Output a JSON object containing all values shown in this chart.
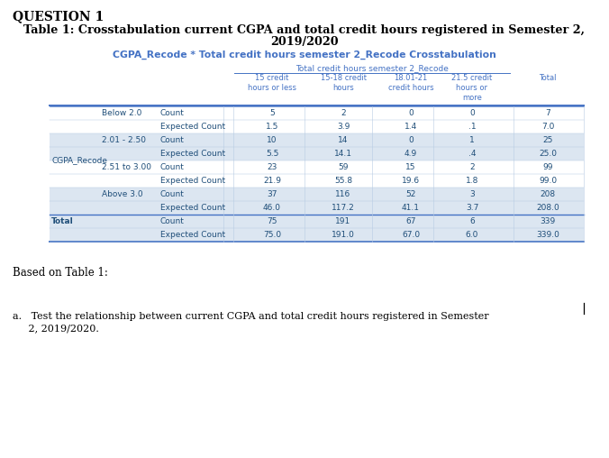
{
  "question_label": "QUESTION 1",
  "main_title_line1": "Table 1: Crosstabulation current CGPA and total credit hours registered in Semester 2,",
  "main_title_line2": "2019/2020",
  "table_subtitle": "CGPA_Recode * Total credit hours semester 2_Recode Crosstabulation",
  "col_group_header": "Total credit hours semester 2_Recode",
  "col_headers": [
    "15 credit\nhours or less",
    "15-18 credit\nhours",
    "18.01-21\ncredit hours",
    "21.5 credit\nhours or\nmore",
    "Total"
  ],
  "rows": [
    {
      "cgpa": "Below 2.0",
      "type": "Count",
      "values": [
        "5",
        "2",
        "0",
        "0",
        "7"
      ]
    },
    {
      "cgpa": "",
      "type": "Expected Count",
      "values": [
        "1.5",
        "3.9",
        "1.4",
        ".1",
        "7.0"
      ]
    },
    {
      "cgpa": "2.01 - 2.50",
      "type": "Count",
      "values": [
        "10",
        "14",
        "0",
        "1",
        "25"
      ]
    },
    {
      "cgpa": "",
      "type": "Expected Count",
      "values": [
        "5.5",
        "14.1",
        "4.9",
        ".4",
        "25.0"
      ]
    },
    {
      "cgpa": "2.51 to 3.00",
      "type": "Count",
      "values": [
        "23",
        "59",
        "15",
        "2",
        "99"
      ]
    },
    {
      "cgpa": "",
      "type": "Expected Count",
      "values": [
        "21.9",
        "55.8",
        "19.6",
        "1.8",
        "99.0"
      ]
    },
    {
      "cgpa": "Above 3.0",
      "type": "Count",
      "values": [
        "37",
        "116",
        "52",
        "3",
        "208"
      ]
    },
    {
      "cgpa": "",
      "type": "Expected Count",
      "values": [
        "46.0",
        "117.2",
        "41.1",
        "3.7",
        "208.0"
      ]
    }
  ],
  "total_rows": [
    {
      "label": "Total",
      "type": "Count",
      "values": [
        "75",
        "191",
        "67",
        "6",
        "339"
      ]
    },
    {
      "label": "",
      "type": "Expected Count",
      "values": [
        "75.0",
        "191.0",
        "67.0",
        "6.0",
        "339.0"
      ]
    }
  ],
  "based_on_text": "Based on Table 1:",
  "question_a_line1": "a.   Test the relationship between current CGPA and total credit hours registered in Semester",
  "question_a_line2": "     2, 2019/2020.",
  "header_text_color": "#4472c4",
  "table_text_color": "#1f4e79",
  "alt_row_color": "#dce6f1",
  "total_row_color": "#bdd7ee",
  "white": "#ffffff",
  "border_color": "#4472c4",
  "light_gray_line": "#b8cce4"
}
